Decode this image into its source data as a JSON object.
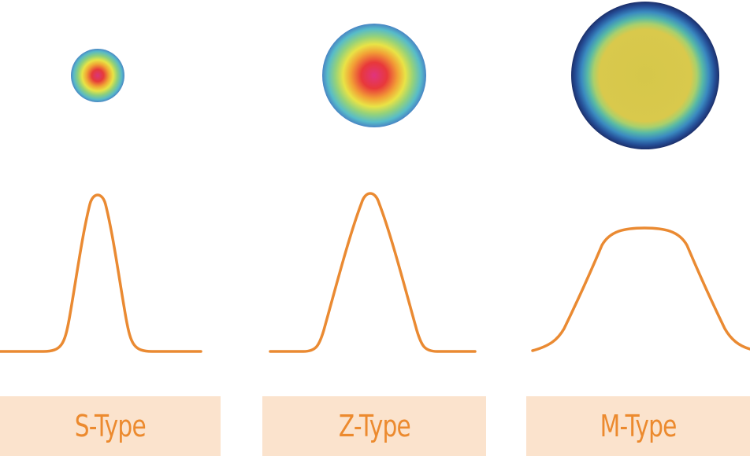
{
  "colors": {
    "profile_line": "#ea8a32",
    "label_background": "#fbe3cd",
    "label_text": "#ec8a2e"
  },
  "beam_types": [
    {
      "label": "S-Type",
      "profile": "narrow-gaussian",
      "spot": "small-gaussian-spot"
    },
    {
      "label": "Z-Type",
      "profile": "wide-gaussian",
      "spot": "medium-gaussian-spot"
    },
    {
      "label": "M-Type",
      "profile": "flat-top",
      "spot": "large-flat-top-spot"
    }
  ]
}
